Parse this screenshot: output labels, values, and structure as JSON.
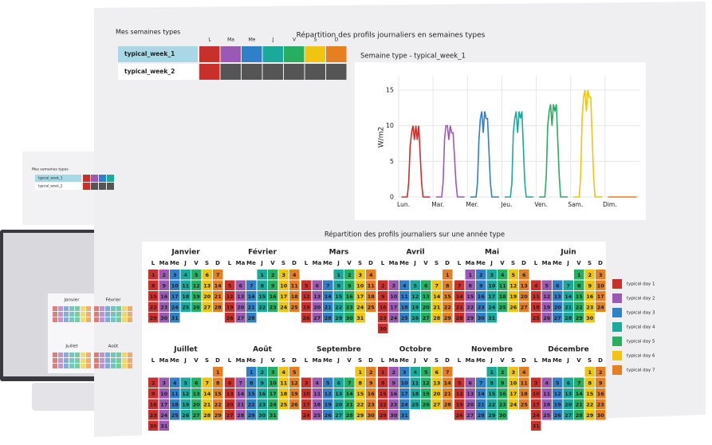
{
  "header": {
    "weeks_title": "Mes semaines types",
    "weeks_chart_title": "Répartition des profils journaliers en semaines types"
  },
  "day_headers": [
    "L",
    "Ma",
    "Me",
    "J",
    "V",
    "S",
    "D"
  ],
  "week_types": [
    {
      "name": "typical_week_1",
      "cells": [
        "#c9302c",
        "#9b59b6",
        "#2f80c8",
        "#1aa99a",
        "#27ae60",
        "#f1c40f",
        "#e67e22"
      ]
    },
    {
      "name": "typical_week_2",
      "cells": [
        "#c9302c",
        "#555555",
        "#555555",
        "#555555",
        "#555555",
        "#555555",
        "#555555"
      ]
    }
  ],
  "week_chart": {
    "type": "line",
    "title": "Semaine type - typical_week_1",
    "ylabel": "W/m2",
    "ylim": [
      0,
      17
    ],
    "yticks": [
      0,
      5,
      10,
      15
    ],
    "xlim": [
      0,
      168
    ],
    "xticks": [
      {
        "value": 0,
        "label": "Lun."
      },
      {
        "value": 24,
        "label": "Mar."
      },
      {
        "value": 48,
        "label": "Mer."
      },
      {
        "value": 72,
        "label": "Jeu."
      },
      {
        "value": 96,
        "label": "Ven."
      },
      {
        "value": 120,
        "label": "Sam."
      },
      {
        "value": 144,
        "label": "Dim."
      }
    ],
    "grid": true,
    "series": [
      {
        "color": "#c9302c",
        "x": [
          2,
          6,
          7,
          8,
          9,
          10,
          11,
          12,
          13,
          14,
          16,
          17,
          22
        ],
        "values": [
          0,
          0,
          2,
          7,
          9,
          10,
          8,
          10,
          8,
          10,
          2,
          0,
          0
        ]
      },
      {
        "color": "#9b59b6",
        "x": [
          26,
          30,
          31,
          32,
          33,
          34,
          35,
          36,
          37,
          38,
          40,
          41,
          46
        ],
        "values": [
          0,
          0,
          2,
          8,
          10,
          10,
          8,
          10,
          9,
          9,
          2,
          0,
          0
        ]
      },
      {
        "color": "#2f80c8",
        "x": [
          50,
          54,
          55,
          56,
          57,
          58,
          59,
          60,
          61,
          62,
          64,
          65,
          70
        ],
        "values": [
          0,
          0,
          2,
          8,
          11,
          12,
          9,
          12,
          11,
          11,
          2,
          0,
          0
        ]
      },
      {
        "color": "#1aa99a",
        "x": [
          74,
          78,
          79,
          80,
          81,
          82,
          83,
          84,
          85,
          86,
          88,
          89,
          94
        ],
        "values": [
          0,
          0,
          2,
          9,
          11,
          12,
          9,
          12,
          11,
          12,
          2,
          0,
          0
        ]
      },
      {
        "color": "#27ae60",
        "x": [
          98,
          102,
          103,
          104,
          105,
          106,
          107,
          108,
          109,
          110,
          112,
          113,
          118
        ],
        "values": [
          0,
          0,
          3,
          10,
          12,
          13,
          10,
          13,
          12,
          13,
          3,
          0,
          0
        ]
      },
      {
        "color": "#f1c40f",
        "x": [
          122,
          126,
          127,
          128,
          129,
          130,
          131,
          132,
          133,
          134,
          136,
          137,
          142
        ],
        "values": [
          0,
          0,
          3,
          11,
          14,
          15,
          12,
          15,
          14,
          14,
          3,
          0,
          0
        ]
      },
      {
        "color": "#e67e22",
        "x": [
          146,
          150,
          151,
          152,
          153,
          154,
          155,
          156,
          157,
          158,
          160,
          161,
          166
        ],
        "values": [
          0,
          0,
          0,
          0,
          0,
          0,
          0,
          0,
          0,
          0,
          0,
          0,
          0
        ]
      }
    ]
  },
  "calendar": {
    "title": "Répartition des profils journaliers sur une année type",
    "months": [
      {
        "name": "Janvier",
        "days": [
          1,
          2,
          3,
          4,
          5,
          6,
          7,
          8,
          9,
          10,
          11,
          12,
          13,
          14,
          15,
          16,
          17,
          18,
          19,
          20,
          21,
          22,
          23,
          24,
          25,
          26,
          27,
          28,
          29,
          30,
          31
        ]
      },
      {
        "name": "Février",
        "days": [
          null,
          null,
          null,
          1,
          2,
          3,
          4,
          5,
          6,
          7,
          8,
          9,
          10,
          11,
          12,
          13,
          14,
          15,
          16,
          17,
          18,
          19,
          20,
          21,
          22,
          23,
          24,
          25,
          26,
          27,
          28
        ]
      },
      {
        "name": "Mars",
        "days": [
          null,
          null,
          null,
          1,
          2,
          3,
          4,
          5,
          6,
          7,
          8,
          9,
          10,
          11,
          12,
          13,
          14,
          15,
          16,
          17,
          18,
          19,
          20,
          21,
          22,
          23,
          24,
          25,
          26,
          27,
          28,
          29,
          30,
          31
        ]
      },
      {
        "name": "Avril",
        "days": [
          null,
          null,
          null,
          null,
          null,
          null,
          1,
          2,
          3,
          4,
          5,
          6,
          7,
          8,
          9,
          10,
          11,
          12,
          13,
          14,
          15,
          16,
          17,
          18,
          19,
          20,
          21,
          22,
          23,
          24,
          25,
          26,
          27,
          28,
          29,
          30
        ]
      },
      {
        "name": "Mai",
        "days": [
          null,
          1,
          2,
          3,
          4,
          5,
          6,
          7,
          8,
          9,
          10,
          11,
          12,
          13,
          14,
          15,
          16,
          17,
          18,
          19,
          20,
          21,
          22,
          23,
          24,
          25,
          26,
          27,
          28,
          29,
          30,
          31
        ]
      },
      {
        "name": "Juin",
        "days": [
          null,
          null,
          null,
          null,
          1,
          2,
          3,
          4,
          5,
          6,
          7,
          8,
          9,
          10,
          11,
          12,
          13,
          14,
          15,
          16,
          17,
          18,
          19,
          20,
          21,
          22,
          23,
          24,
          25,
          26,
          27,
          28,
          29,
          30
        ]
      },
      {
        "name": "Juillet",
        "days": [
          null,
          null,
          null,
          null,
          null,
          null,
          1,
          2,
          3,
          4,
          5,
          6,
          7,
          8,
          9,
          10,
          11,
          12,
          13,
          14,
          15,
          16,
          17,
          18,
          19,
          20,
          21,
          22,
          23,
          24,
          25,
          26,
          27,
          28,
          29,
          30,
          31
        ]
      },
      {
        "name": "Août",
        "days": [
          null,
          null,
          1,
          2,
          3,
          4,
          5,
          6,
          7,
          8,
          9,
          10,
          11,
          12,
          13,
          14,
          15,
          16,
          17,
          18,
          19,
          20,
          21,
          22,
          23,
          24,
          25,
          26,
          27,
          28,
          29,
          30,
          31
        ]
      },
      {
        "name": "Septembre",
        "days": [
          null,
          null,
          null,
          null,
          null,
          1,
          2,
          3,
          4,
          5,
          6,
          7,
          8,
          9,
          10,
          11,
          12,
          13,
          14,
          15,
          16,
          17,
          18,
          19,
          20,
          21,
          22,
          23,
          24,
          25,
          26,
          27,
          28,
          29,
          30
        ]
      },
      {
        "name": "Octobre",
        "days": [
          1,
          2,
          3,
          4,
          5,
          6,
          7,
          8,
          9,
          10,
          11,
          12,
          13,
          14,
          15,
          16,
          17,
          18,
          19,
          20,
          21,
          22,
          23,
          24,
          25,
          26,
          27,
          28,
          29,
          30,
          31
        ]
      },
      {
        "name": "Novembre",
        "days": [
          null,
          null,
          null,
          1,
          2,
          3,
          4,
          5,
          6,
          7,
          8,
          9,
          10,
          11,
          12,
          13,
          14,
          15,
          16,
          17,
          18,
          19,
          20,
          21,
          22,
          23,
          24,
          25,
          26,
          27,
          28,
          29,
          30
        ]
      },
      {
        "name": "Décembre",
        "days": [
          null,
          null,
          null,
          null,
          null,
          1,
          2,
          3,
          4,
          5,
          6,
          7,
          8,
          9,
          10,
          11,
          12,
          13,
          14,
          15,
          16,
          17,
          18,
          19,
          20,
          21,
          22,
          23,
          24,
          25,
          26,
          27,
          28,
          29,
          30,
          31
        ]
      }
    ],
    "legend": [
      {
        "name": "typical day 1",
        "color": "#c9302c"
      },
      {
        "name": "typical day 2",
        "color": "#9b59b6"
      },
      {
        "name": "typical day 3",
        "color": "#2f80c8"
      },
      {
        "name": "typical day 4",
        "color": "#1aa99a"
      },
      {
        "name": "typical day 5",
        "color": "#27ae60"
      },
      {
        "name": "typical day 6",
        "color": "#f1c40f"
      },
      {
        "name": "typical day 7",
        "color": "#e67e22"
      }
    ]
  }
}
